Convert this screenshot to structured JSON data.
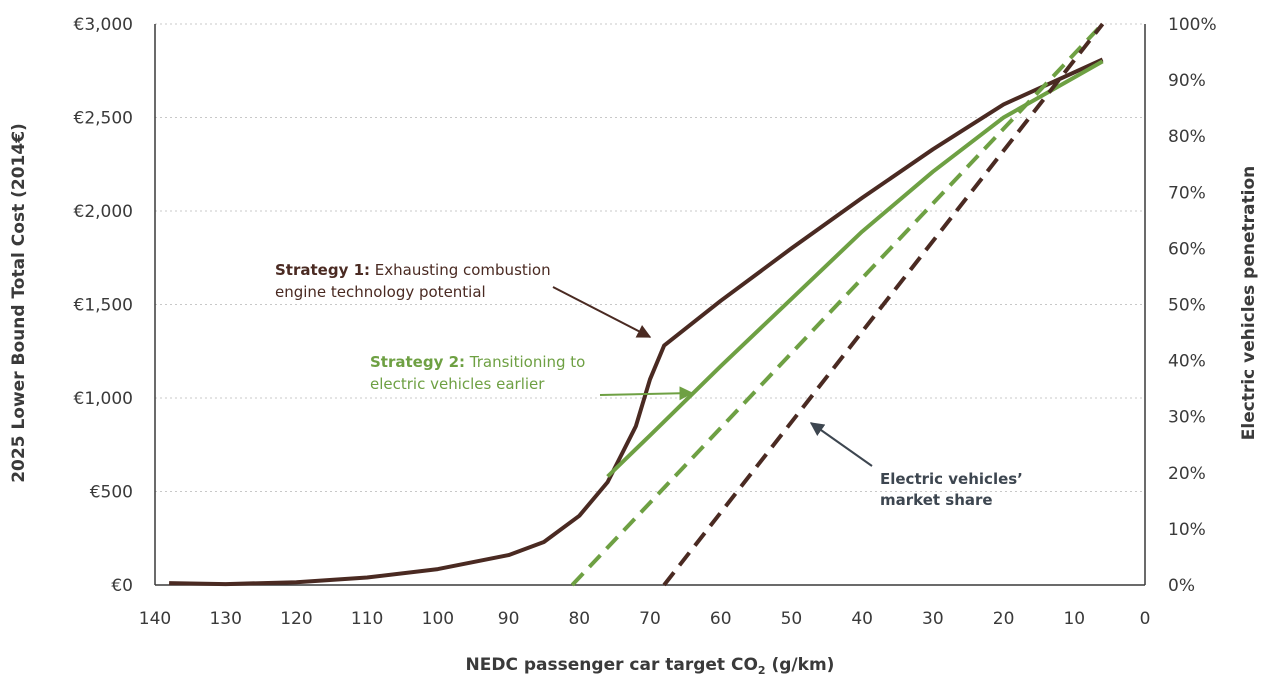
{
  "chart_data": {
    "type": "line",
    "xlabel": "NEDC passenger car target CO₂ (g/km)",
    "ylabel": "2025 Lower Bound Total Cost (2014€)",
    "y2label": "Electric vehicles penetration",
    "xlim": [
      140,
      0
    ],
    "ylim": [
      0,
      3000
    ],
    "y2lim": [
      0,
      100
    ],
    "x_ticks": [
      "140",
      "130",
      "120",
      "110",
      "100",
      "90",
      "80",
      "70",
      "60",
      "50",
      "40",
      "30",
      "20",
      "10",
      "0"
    ],
    "y_ticks": [
      "€0",
      "€500",
      "€1,000",
      "€1,500",
      "€2,000",
      "€2,500",
      "€3,000"
    ],
    "y2_ticks": [
      "0%",
      "10%",
      "20%",
      "30%",
      "40%",
      "50%",
      "60%",
      "70%",
      "80%",
      "90%",
      "100%"
    ],
    "grid": "horizontal dotted",
    "colors": {
      "strategy1": "#4a2a22",
      "strategy2": "#6ea043",
      "arrow_ev": "#3d4650",
      "axis": "#3a3a3a",
      "grid": "#c8c8c8"
    },
    "series": [
      {
        "key": "s1_cost",
        "axis": "left",
        "style": "solid",
        "color": "#4a2a22",
        "points": [
          [
            138,
            10
          ],
          [
            130,
            5
          ],
          [
            120,
            15
          ],
          [
            110,
            40
          ],
          [
            100,
            85
          ],
          [
            90,
            160
          ],
          [
            85,
            230
          ],
          [
            80,
            370
          ],
          [
            76,
            550
          ],
          [
            72,
            850
          ],
          [
            70,
            1100
          ],
          [
            68,
            1280
          ],
          [
            60,
            1520
          ],
          [
            50,
            1800
          ],
          [
            40,
            2070
          ],
          [
            30,
            2330
          ],
          [
            20,
            2570
          ],
          [
            6,
            2810
          ]
        ]
      },
      {
        "key": "s2_cost",
        "axis": "left",
        "style": "solid",
        "color": "#6ea043",
        "points": [
          [
            76,
            580
          ],
          [
            70,
            800
          ],
          [
            60,
            1170
          ],
          [
            50,
            1530
          ],
          [
            40,
            1890
          ],
          [
            30,
            2210
          ],
          [
            20,
            2500
          ],
          [
            6,
            2800
          ]
        ]
      },
      {
        "key": "s2_ev",
        "axis": "right",
        "style": "dashed",
        "color": "#6ea043",
        "points": [
          [
            81,
            0
          ],
          [
            6,
            100
          ]
        ]
      },
      {
        "key": "s1_ev",
        "axis": "right",
        "style": "dashed",
        "color": "#4a2a22",
        "points": [
          [
            68,
            0
          ],
          [
            6,
            100
          ]
        ]
      }
    ],
    "annotations": [
      {
        "bold": "Strategy 1:",
        "text": " Exhausting combustion",
        "line2": "engine technology potential",
        "color": "#4a2a22"
      },
      {
        "bold": "Strategy 2:",
        "text": " Transitioning to",
        "line2": "electric vehicles earlier",
        "color": "#6ea043"
      },
      {
        "text": "Electric vehicles’",
        "line2": "market share",
        "color": "#3d4650"
      }
    ]
  }
}
